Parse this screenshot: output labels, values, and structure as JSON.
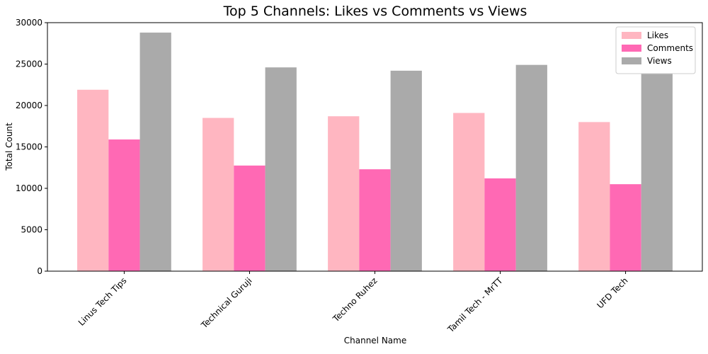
{
  "chart_data": {
    "type": "bar",
    "title": "Top 5 Channels: Likes vs Comments vs Views",
    "x_label": "Channel Name",
    "y_label": "Total Count",
    "categories": [
      "Linus Tech Tips",
      "Technical Guruji",
      "Techno Ruhez",
      "Tamil Tech - MrTT",
      "UFD Tech"
    ],
    "series": [
      {
        "name": "Likes",
        "color": "#ffb6c1",
        "values": [
          21900,
          18500,
          18700,
          19100,
          18000
        ]
      },
      {
        "name": "Comments",
        "color": "#ff69b4",
        "values": [
          15900,
          12750,
          12300,
          11200,
          10500
        ]
      },
      {
        "name": "Views",
        "color": "#aaaaaa",
        "values": [
          28800,
          24600,
          24200,
          24900,
          23900
        ]
      }
    ],
    "ylim": [
      0,
      30000
    ],
    "yticks": [
      0,
      5000,
      10000,
      15000,
      20000,
      25000,
      30000
    ],
    "grid": false,
    "legend": "upper right"
  }
}
